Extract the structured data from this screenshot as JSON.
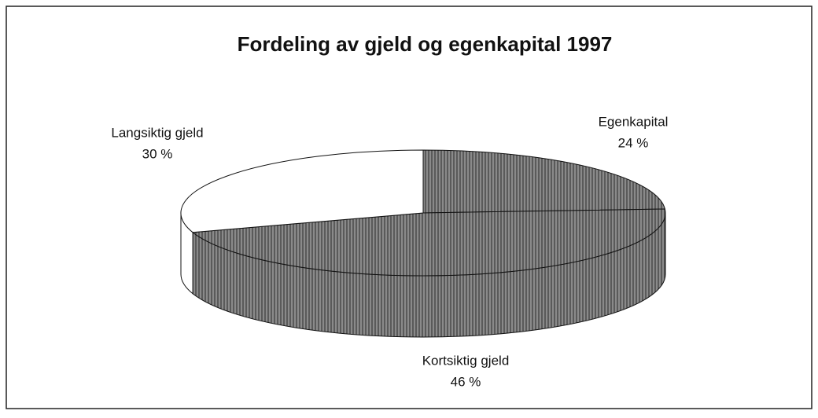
{
  "chart_data": {
    "type": "pie3d",
    "title": "Fordeling av gjeld og egenkapital 1997",
    "categories": [
      "Egenkapital",
      "Kortsiktig gjeld",
      "Langsiktig gjeld"
    ],
    "values": [
      24,
      46,
      30
    ],
    "value_labels": [
      "24 %",
      "46 %",
      "30 %"
    ],
    "colors": [
      "#8a8a8a",
      "#8a8a8a",
      "#ffffff"
    ]
  }
}
